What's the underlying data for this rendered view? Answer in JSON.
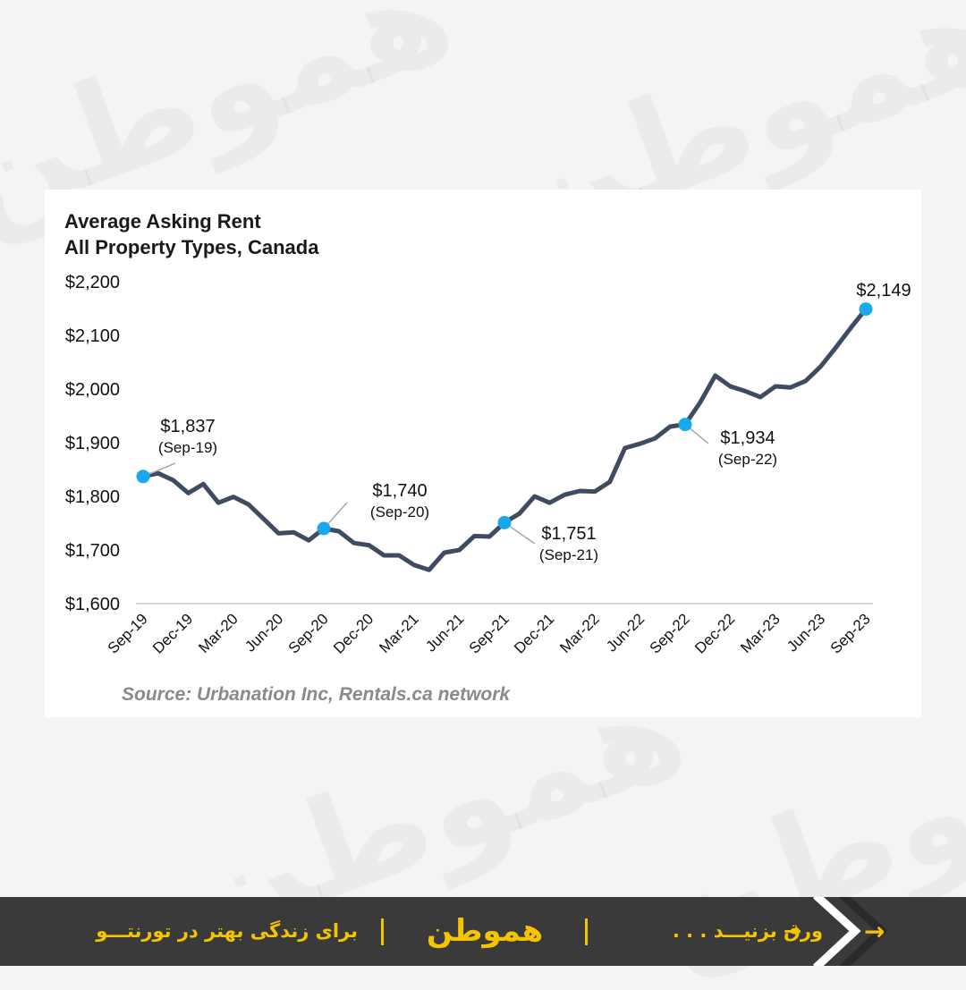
{
  "chart_data": {
    "type": "line",
    "title": "Average Asking Rent",
    "subtitle": "All Property Types, Canada",
    "source": "Source: Urbanation Inc, Rentals.ca network",
    "x_ticks": [
      "Sep-19",
      "Dec-19",
      "Mar-20",
      "Jun-20",
      "Sep-20",
      "Dec-20",
      "Mar-21",
      "Jun-21",
      "Sep-21",
      "Dec-21",
      "Mar-22",
      "Jun-22",
      "Sep-22",
      "Dec-22",
      "Mar-23",
      "Jun-23",
      "Sep-23"
    ],
    "ylim": [
      1600,
      2200
    ],
    "y_ticks": [
      "$1,600",
      "$1,700",
      "$1,800",
      "$1,900",
      "$2,000",
      "$2,100",
      "$2,200"
    ],
    "grid": false,
    "line_color": "#3e4b61",
    "marker_color": "#1aa7ec",
    "values": [
      1837,
      1843,
      1830,
      1806,
      1823,
      1788,
      1799,
      1785,
      1758,
      1731,
      1733,
      1718,
      1740,
      1735,
      1713,
      1709,
      1690,
      1690,
      1672,
      1663,
      1695,
      1700,
      1726,
      1725,
      1751,
      1768,
      1800,
      1788,
      1803,
      1810,
      1809,
      1827,
      1890,
      1898,
      1908,
      1930,
      1934,
      1975,
      2025,
      2005,
      1996,
      1985,
      2005,
      2003,
      2015,
      2042,
      2077,
      2114,
      2149
    ],
    "annotations": [
      {
        "index": 0,
        "value": "$1,837",
        "date": "(Sep-19)"
      },
      {
        "index": 12,
        "value": "$1,740",
        "date": "(Sep-20)"
      },
      {
        "index": 24,
        "value": "$1,751",
        "date": "(Sep-21)"
      },
      {
        "index": 36,
        "value": "$1,934",
        "date": "(Sep-22)"
      },
      {
        "index": 48,
        "value": "$2,149",
        "date": ""
      }
    ]
  },
  "footer": {
    "tagline": "برای زندگی بهتر در تورنتـــو",
    "logo": "هموطن",
    "swipe": "ورق بزنیـــد . . .",
    "arrow": "→",
    "background": "#3a3a3a",
    "accent": "#f5c400"
  }
}
